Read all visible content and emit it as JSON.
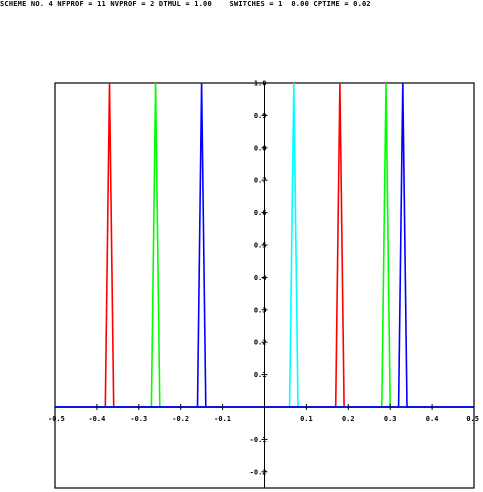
{
  "header": {
    "status_line": "SCHEME NO. 4 NFPROF = 11 NVPROF = 2 DTMUL = 1.00    SWITCHES = 1  0.00 CPTIME = 0.02"
  },
  "chart_data": {
    "type": "line",
    "title": "",
    "xlabel": "",
    "ylabel": "",
    "xlim": [
      -0.5,
      0.5
    ],
    "ylim": [
      -0.25,
      1.0
    ],
    "x_ticks": [
      -0.5,
      -0.4,
      -0.3,
      -0.2,
      -0.1,
      0.1,
      0.2,
      0.3,
      0.4,
      0.5
    ],
    "x_tick_labels": [
      "-0.5",
      "-0.4",
      "-0.3",
      "-0.2",
      "-0.1",
      "0.1",
      "0.2",
      "0.3",
      "0.4",
      "0.5"
    ],
    "y_ticks": [
      1.0,
      0.9,
      0.8,
      0.7,
      0.6,
      0.5,
      0.4,
      0.3,
      0.2,
      0.1,
      -0.1,
      -0.2
    ],
    "y_tick_labels": [
      "1.0",
      "0.9",
      "0.8",
      "0.7",
      "0.6",
      "0.5",
      "0.4",
      "0.3",
      "0.2",
      "0.1",
      "-0.1",
      "-0.2"
    ],
    "series": [
      {
        "color": "#ff0000",
        "x": [
          -0.5,
          -0.38,
          -0.37,
          -0.36,
          0.5
        ],
        "y": [
          0,
          0,
          1.0,
          0,
          0
        ]
      },
      {
        "color": "#00ff00",
        "x": [
          -0.5,
          -0.27,
          -0.26,
          -0.25,
          0.5
        ],
        "y": [
          0,
          0,
          1.0,
          0,
          0
        ]
      },
      {
        "color": "#0000ff",
        "x": [
          -0.5,
          -0.16,
          -0.15,
          -0.14,
          0.5
        ],
        "y": [
          0,
          0,
          1.0,
          0,
          0
        ]
      },
      {
        "color": "#00ffff",
        "x": [
          -0.5,
          0.06,
          0.07,
          0.08,
          0.5
        ],
        "y": [
          0,
          0,
          1.0,
          0,
          0
        ]
      },
      {
        "color": "#ff0000",
        "x": [
          -0.5,
          0.17,
          0.18,
          0.19,
          0.5
        ],
        "y": [
          0,
          0,
          1.0,
          0,
          0
        ]
      },
      {
        "color": "#00ff00",
        "x": [
          -0.5,
          0.28,
          0.29,
          0.3,
          0.5
        ],
        "y": [
          0,
          0,
          1.0,
          0,
          0
        ]
      },
      {
        "color": "#0000ff",
        "x": [
          -0.5,
          0.32,
          0.33,
          0.34,
          0.5
        ],
        "y": [
          0,
          0,
          1.0,
          0,
          0
        ]
      }
    ],
    "axis_color": "#000000",
    "zero_line_color": "#0000ff"
  }
}
